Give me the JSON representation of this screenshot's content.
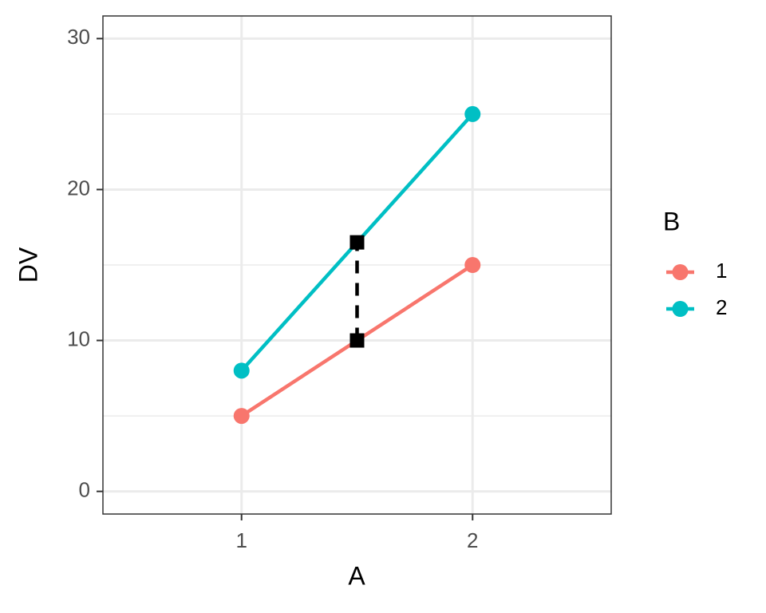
{
  "chart_data": {
    "type": "line",
    "x_label": "A",
    "y_label": "DV",
    "x": [
      1,
      2
    ],
    "series": [
      {
        "name": "1",
        "color": "#F8766D",
        "values": [
          5,
          15
        ]
      },
      {
        "name": "2",
        "color": "#00BFC4",
        "values": [
          8,
          25
        ]
      }
    ],
    "midpoints": {
      "x": 1.5,
      "values": [
        10,
        16.5
      ],
      "color": "#000000"
    },
    "legend_title": "B",
    "xlim": [
      0.4,
      2.6
    ],
    "xticks": [
      1,
      2
    ],
    "ylim": [
      -1.5,
      31.5
    ],
    "yticks": [
      0,
      10,
      20,
      30
    ],
    "yminor": [
      5,
      15,
      25
    ],
    "grid": true,
    "legend": "right"
  }
}
